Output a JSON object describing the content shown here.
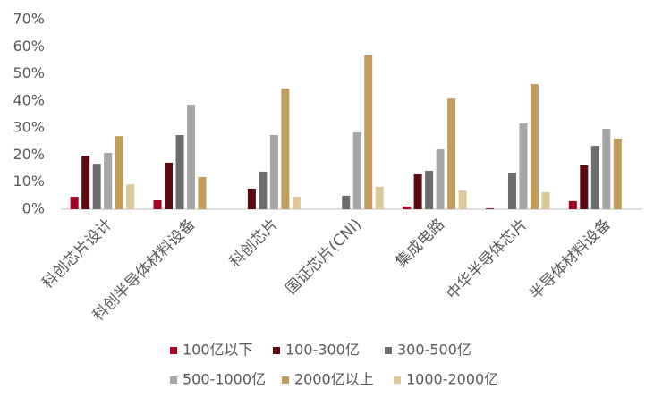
{
  "chart_data": {
    "type": "bar",
    "categories": [
      "科创芯片设计",
      "科创半导体材料设备",
      "科创芯片",
      "国证芯片(CNI)",
      "集成电路",
      "中华半导体芯片",
      "半导体材料设备"
    ],
    "series": [
      {
        "name": "100亿以下",
        "color": "#a50021",
        "values": [
          4.6,
          3.3,
          null,
          null,
          1.0,
          0.3,
          3.0
        ]
      },
      {
        "name": "100-300亿",
        "color": "#5c0a0f",
        "values": [
          19.8,
          17.2,
          7.6,
          null,
          12.9,
          null,
          16.2
        ]
      },
      {
        "name": "300-500亿",
        "color": "#6d6d6d",
        "values": [
          16.8,
          27.4,
          13.9,
          5.0,
          14.2,
          13.5,
          23.4
        ]
      },
      {
        "name": "500-1000亿",
        "color": "#a6a6a6",
        "values": [
          20.8,
          38.6,
          27.4,
          28.4,
          22.1,
          31.7,
          29.7
        ]
      },
      {
        "name": "2000亿以上",
        "color": "#c39b5a",
        "values": [
          27.0,
          11.9,
          44.6,
          56.8,
          40.9,
          46.2,
          26.1
        ]
      },
      {
        "name": "1000-2000亿",
        "color": "#dcc89b",
        "values": [
          9.2,
          null,
          4.6,
          8.3,
          6.9,
          6.3,
          null
        ]
      }
    ],
    "ylim": [
      0,
      70
    ],
    "yticks": [
      {
        "value": 0,
        "label": "0%"
      },
      {
        "value": 10,
        "label": "10%"
      },
      {
        "value": 20,
        "label": "20%"
      },
      {
        "value": 30,
        "label": "30%"
      },
      {
        "value": 40,
        "label": "40%"
      },
      {
        "value": 50,
        "label": "50%"
      },
      {
        "value": 60,
        "label": "60%"
      },
      {
        "value": 70,
        "label": "70%"
      }
    ],
    "grid": false
  }
}
